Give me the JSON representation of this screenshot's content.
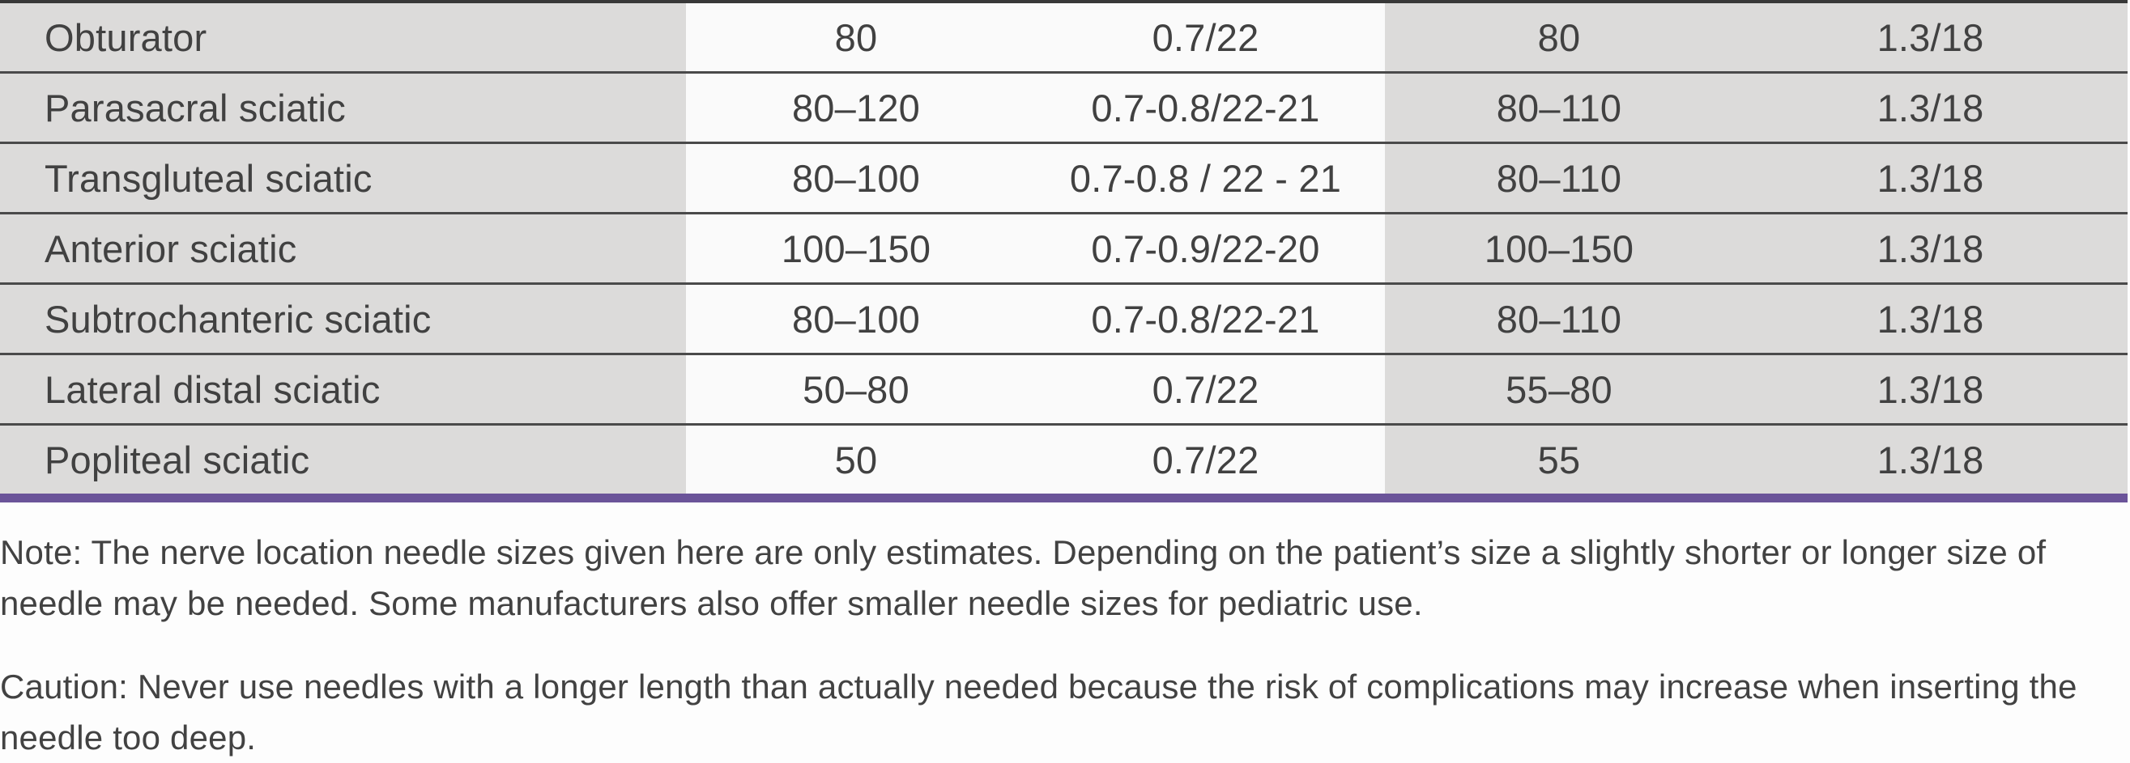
{
  "table": {
    "rows": [
      {
        "label": "Obturator",
        "values": [
          "80",
          "0.7/22",
          "80",
          "1.3/18"
        ]
      },
      {
        "label": "Parasacral sciatic",
        "values": [
          "80–120",
          "0.7-0.8/22-21",
          "80–110",
          "1.3/18"
        ]
      },
      {
        "label": "Transgluteal sciatic",
        "values": [
          "80–100",
          "0.7-0.8 / 22 - 21",
          "80–110",
          "1.3/18"
        ]
      },
      {
        "label": "Anterior sciatic",
        "values": [
          "100–150",
          "0.7-0.9/22-20",
          "100–150",
          "1.3/18"
        ]
      },
      {
        "label": "Subtrochanteric sciatic",
        "values": [
          "80–100",
          "0.7-0.8/22-21",
          "80–110",
          "1.3/18"
        ]
      },
      {
        "label": "Lateral distal sciatic",
        "values": [
          "50–80",
          "0.7/22",
          "55–80",
          "1.3/18"
        ]
      },
      {
        "label": "Popliteal sciatic",
        "values": [
          "50",
          "0.7/22",
          "55",
          "1.3/18"
        ]
      }
    ],
    "colors": {
      "shaded_cell": "#dcdbda",
      "plain_cell": "#fafafa",
      "row_rule": "#4a4a4a",
      "top_rule": "#383838",
      "accent_purple": "#6b5499"
    }
  },
  "notes": {
    "note": "Note: The nerve location needle sizes given here are only estimates. Depending on the patient’s size a slightly shorter or longer size of needle may be needed. Some manufacturers also offer smaller needle sizes for pediatric use.",
    "caution": "Caution: Never use needles with a longer length than actually needed because the risk of complications may increase when inserting the needle too deep."
  }
}
